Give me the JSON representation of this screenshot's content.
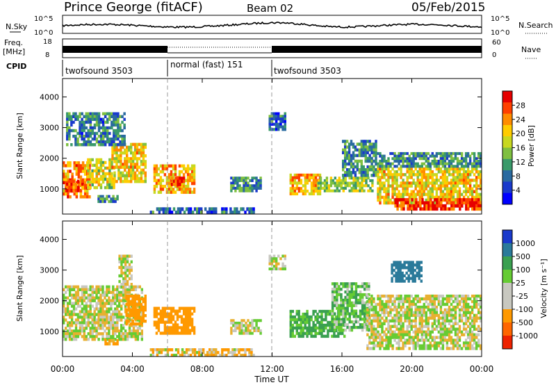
{
  "header": {
    "station": "Prince George (fitACF)",
    "beam": "Beam 02",
    "date": "05/Feb/2015"
  },
  "noise_panel": {
    "left_label": "N.Sky",
    "left_ticks": [
      "10^5",
      "10^0"
    ],
    "right_label": "N.Search",
    "right_ticks": [
      "10^5",
      "10^0"
    ]
  },
  "freq_panel": {
    "left_label_1": "Freq.",
    "left_label_2": "[MHz]",
    "left_ticks": [
      "18",
      "8"
    ],
    "right_label": "Nave",
    "right_ticks": [
      "60",
      "0"
    ]
  },
  "cpid": {
    "label": "CPID",
    "segments": [
      {
        "name": "twofsound 3503",
        "start_hour": 0,
        "end_hour": 6
      },
      {
        "name": "normal (fast) 151",
        "start_hour": 6,
        "end_hour": 12
      },
      {
        "name": "twofsound 3503",
        "start_hour": 12,
        "end_hour": 24
      }
    ]
  },
  "power_panel": {
    "ylabel": "Slant Range [km]",
    "colorbar_label": "Power [dB]",
    "colorbar_ticks": [
      "28",
      "24",
      "20",
      "16",
      "12",
      "8",
      "4"
    ],
    "colorbar_colors": [
      "#e60000",
      "#ff4000",
      "#ff8c00",
      "#ffcc00",
      "#c8d820",
      "#7fc040",
      "#3a9a6a",
      "#2a6aa0",
      "#1a3acc",
      "#0000ff"
    ]
  },
  "velocity_panel": {
    "ylabel": "Slant Range [km]",
    "colorbar_label": "Velocity [m s⁻¹]",
    "colorbar_ticks": [
      "1000",
      "500",
      "100",
      "25",
      "-25",
      "-100",
      "-500",
      "-1000"
    ],
    "colorbar_colors": [
      "#1a3acc",
      "#2a7a9a",
      "#3aa050",
      "#66cc33",
      "#c8c8c0",
      "#c8c8c0",
      "#ff9900",
      "#ff6600",
      "#ee2200"
    ]
  },
  "x_ticks": [
    "00:00",
    "04:00",
    "08:00",
    "12:00",
    "16:00",
    "20:00",
    "00:00"
  ],
  "xlabel": "Time UT",
  "chart_data": [
    {
      "type": "heatmap",
      "title": "Power",
      "xlabel": "Time UT",
      "ylabel": "Slant Range [km]",
      "xlim": [
        0,
        24
      ],
      "ylim": [
        180,
        4600
      ],
      "yticks": [
        1000,
        2000,
        3000,
        4000
      ],
      "colorbar_range_db": [
        0,
        32
      ],
      "patches": [
        {
          "t0": 0.0,
          "t1": 1.6,
          "r0": 700,
          "r1": 1900,
          "level": 24
        },
        {
          "t0": 0.2,
          "t1": 1.2,
          "r0": 900,
          "r1": 1300,
          "level": 28
        },
        {
          "t0": 1.4,
          "t1": 3.0,
          "r0": 1000,
          "r1": 2000,
          "level": 18
        },
        {
          "t0": 2.8,
          "t1": 4.8,
          "r0": 1200,
          "r1": 2500,
          "level": 20
        },
        {
          "t0": 2.0,
          "t1": 3.2,
          "r0": 550,
          "r1": 800,
          "level": 10
        },
        {
          "t0": 0.2,
          "t1": 3.6,
          "r0": 2400,
          "r1": 3500,
          "level": 9
        },
        {
          "t0": 5.2,
          "t1": 7.6,
          "r0": 850,
          "r1": 1800,
          "level": 22
        },
        {
          "t0": 6.2,
          "t1": 7.0,
          "r0": 1100,
          "r1": 1400,
          "level": 27
        },
        {
          "t0": 9.6,
          "t1": 11.4,
          "r0": 900,
          "r1": 1400,
          "level": 10
        },
        {
          "t0": 11.8,
          "t1": 12.8,
          "r0": 2900,
          "r1": 3500,
          "level": 8
        },
        {
          "t0": 13.0,
          "t1": 14.8,
          "r0": 800,
          "r1": 1500,
          "level": 22
        },
        {
          "t0": 14.6,
          "t1": 17.8,
          "r0": 900,
          "r1": 1400,
          "level": 16
        },
        {
          "t0": 16.0,
          "t1": 18.0,
          "r0": 1400,
          "r1": 2600,
          "level": 10
        },
        {
          "t0": 18.0,
          "t1": 24.0,
          "r0": 500,
          "r1": 1700,
          "level": 20
        },
        {
          "t0": 19.0,
          "t1": 24.0,
          "r0": 300,
          "r1": 700,
          "level": 29
        },
        {
          "t0": 18.0,
          "t1": 24.0,
          "r0": 1700,
          "r1": 2200,
          "level": 10
        },
        {
          "t0": 5.0,
          "t1": 11.0,
          "r0": 180,
          "r1": 400,
          "level": 8
        }
      ]
    },
    {
      "type": "heatmap",
      "title": "Velocity",
      "xlabel": "Time UT",
      "ylabel": "Slant Range [km]",
      "xlim": [
        0,
        24
      ],
      "ylim": [
        180,
        4600
      ],
      "yticks": [
        1000,
        2000,
        3000,
        4000
      ],
      "colorbar_range_ms": [
        -1000,
        1000
      ],
      "patches": [
        {
          "t0": 0.0,
          "t1": 4.6,
          "r0": 700,
          "r1": 2500,
          "level": 0
        },
        {
          "t0": 3.6,
          "t1": 4.8,
          "r0": 1200,
          "r1": 2200,
          "level": -300
        },
        {
          "t0": 2.4,
          "t1": 3.2,
          "r0": 550,
          "r1": 750,
          "level": -150
        },
        {
          "t0": 3.2,
          "t1": 4.0,
          "r0": 2400,
          "r1": 3500,
          "level": 0
        },
        {
          "t0": 5.2,
          "t1": 7.6,
          "r0": 900,
          "r1": 1800,
          "level": -300
        },
        {
          "t0": 9.6,
          "t1": 11.4,
          "r0": 900,
          "r1": 1400,
          "level": 0
        },
        {
          "t0": 11.8,
          "t1": 12.8,
          "r0": 3000,
          "r1": 3500,
          "level": 0
        },
        {
          "t0": 13.0,
          "t1": 16.2,
          "r0": 800,
          "r1": 1700,
          "level": 150
        },
        {
          "t0": 15.4,
          "t1": 17.6,
          "r0": 1000,
          "r1": 2600,
          "level": 80
        },
        {
          "t0": 17.4,
          "t1": 24.0,
          "r0": 400,
          "r1": 2200,
          "level": 0
        },
        {
          "t0": 18.8,
          "t1": 20.6,
          "r0": 2600,
          "r1": 3300,
          "level": 600
        },
        {
          "t0": 5.0,
          "t1": 11.0,
          "r0": 180,
          "r1": 450,
          "level": -50
        }
      ]
    }
  ]
}
